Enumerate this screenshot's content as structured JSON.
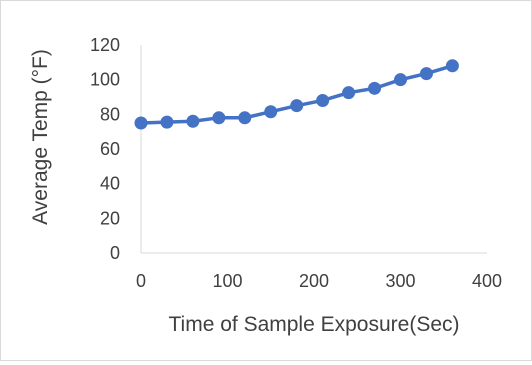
{
  "chart_data": {
    "type": "line",
    "title": "",
    "xlabel": "Time of Sample Exposure(Sec)",
    "ylabel": "Average Temp (°F)",
    "xlim": [
      0,
      400
    ],
    "ylim": [
      0,
      120
    ],
    "xticks": [
      0,
      100,
      200,
      300,
      400
    ],
    "yticks": [
      0,
      20,
      40,
      60,
      80,
      100,
      120
    ],
    "grid": false,
    "legend": "none",
    "series": [
      {
        "color": "#4472c4",
        "x": [
          0,
          30,
          60,
          90,
          120,
          150,
          180,
          210,
          240,
          270,
          300,
          330,
          360
        ],
        "y": [
          75,
          75.5,
          76,
          78,
          78,
          81.5,
          85,
          88,
          92.5,
          95,
          100,
          103.5,
          108
        ]
      }
    ]
  }
}
